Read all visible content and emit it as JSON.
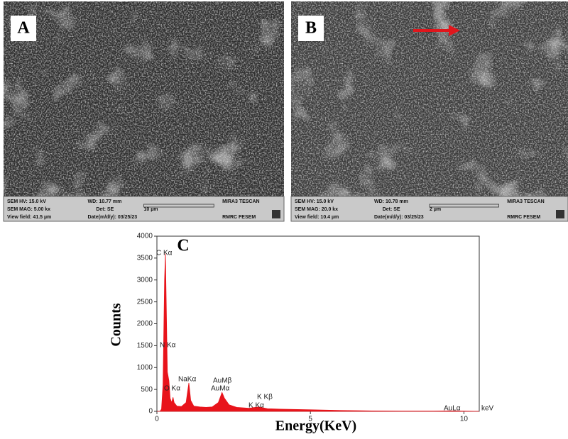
{
  "panels": [
    {
      "label": "A",
      "info": [
        "SEM HV: 15.0 kV",
        "WD: 10.77 mm",
        "MIRA3 TESCAN",
        "SEM MAG: 5.00 kx",
        "Det: SE",
        "10 µm",
        "View field: 41.5 µm",
        "Date(m/d/y): 03/25/23",
        "RMRC  FESEM"
      ]
    },
    {
      "label": "B",
      "info": [
        "SEM HV: 15.0 kV",
        "WD: 10.78 mm",
        "MIRA3 TESCAN",
        "SEM MAG: 20.0 kx",
        "Det: SE",
        "2 µm",
        "View field: 10.4 µm",
        "Date(m/d/y): 03/25/23",
        "RMRC  FESEM"
      ]
    }
  ],
  "chart_data": {
    "type": "area",
    "panel_label": "C",
    "x_label": "Energy(KeV)",
    "y_label": "Counts",
    "x_unit": "keV",
    "color": "#e8141b",
    "x": [
      0,
      0.1,
      0.15,
      0.2,
      0.25,
      0.277,
      0.3,
      0.34,
      0.39,
      0.43,
      0.48,
      0.525,
      0.56,
      0.65,
      0.8,
      0.95,
      1.04,
      1.1,
      1.2,
      1.4,
      1.6,
      1.8,
      2.0,
      2.12,
      2.2,
      2.35,
      2.6,
      3.0,
      3.31,
      3.6,
      4.0,
      5.0,
      6.0,
      7.0,
      8.0,
      9.0,
      9.7,
      10.0,
      10.5
    ],
    "values": [
      0,
      0,
      50,
      600,
      3000,
      3600,
      2600,
      900,
      700,
      300,
      200,
      320,
      200,
      120,
      110,
      200,
      650,
      250,
      120,
      100,
      90,
      100,
      200,
      430,
      300,
      150,
      90,
      70,
      100,
      60,
      50,
      35,
      20,
      10,
      5,
      5,
      10,
      5,
      0
    ],
    "xlim": [
      0,
      10.5
    ],
    "xticks": [
      0,
      5,
      10
    ],
    "ylim": [
      0,
      4000
    ],
    "yticks": [
      0,
      500,
      1000,
      1500,
      2000,
      2500,
      3000,
      3500,
      4000
    ],
    "annotations": [
      "C Kα",
      "N Kα",
      "O Kα",
      "NaKα",
      "AuMβ",
      "AuMα",
      "K Kβ",
      "K Kα",
      "AuLα"
    ]
  }
}
